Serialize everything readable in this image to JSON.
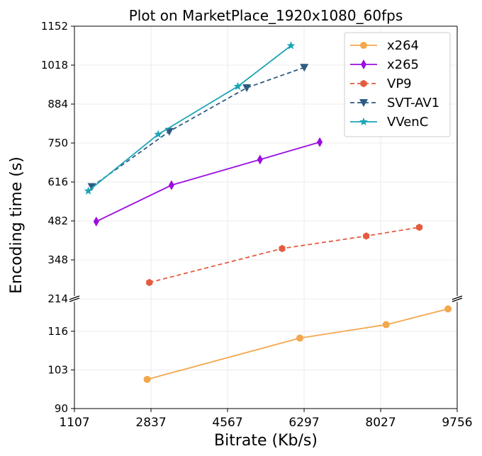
{
  "chart_data": {
    "type": "line",
    "title": "Plot on MarketPlace_1920x1080_60fps",
    "xlabel": "Bitrate (Kb/s)",
    "ylabel": "Encoding time (s)",
    "xlim": [
      1107,
      9756
    ],
    "x_ticks": [
      "1107",
      "2837",
      "4567",
      "6297",
      "8027",
      "9756"
    ],
    "broken_y_axis": true,
    "ylim_upper": [
      214,
      1152
    ],
    "ylim_lower": [
      90,
      120
    ],
    "y_ticks_upper": [
      "1152",
      "1018",
      "884",
      "750",
      "616",
      "482",
      "348",
      "214"
    ],
    "y_ticks_lower": [
      "116",
      "103",
      "90"
    ],
    "grid": true,
    "legend_position": "top-right",
    "series": [
      {
        "name": "x264",
        "color": "#f4a74c",
        "linestyle": "solid",
        "marker": "circle",
        "x": [
          2750,
          6200,
          8150,
          9550
        ],
        "y": [
          99.8,
          113.7,
          118.2,
          123.5
        ]
      },
      {
        "name": "x265",
        "color": "#9b0de0",
        "linestyle": "solid",
        "marker": "thin_diamond",
        "x": [
          1600,
          3300,
          5300,
          6650
        ],
        "y": [
          480,
          605,
          693,
          753
        ]
      },
      {
        "name": "VP9",
        "color": "#e55b3e",
        "linestyle": "dashed",
        "marker": "hexagon",
        "x": [
          2800,
          5800,
          7700,
          8900
        ],
        "y": [
          270,
          387,
          430,
          460
        ]
      },
      {
        "name": "SVT-AV1",
        "color": "#2e5b82",
        "linestyle": "dashed",
        "marker": "triangle_down",
        "x": [
          1500,
          3250,
          5000,
          6300
        ],
        "y": [
          600,
          790,
          940,
          1010
        ]
      },
      {
        "name": "VVenC",
        "color": "#1aa4b4",
        "linestyle": "solid",
        "marker": "star",
        "x": [
          1420,
          3000,
          4800,
          6000
        ],
        "y": [
          585,
          780,
          945,
          1085
        ]
      }
    ]
  }
}
